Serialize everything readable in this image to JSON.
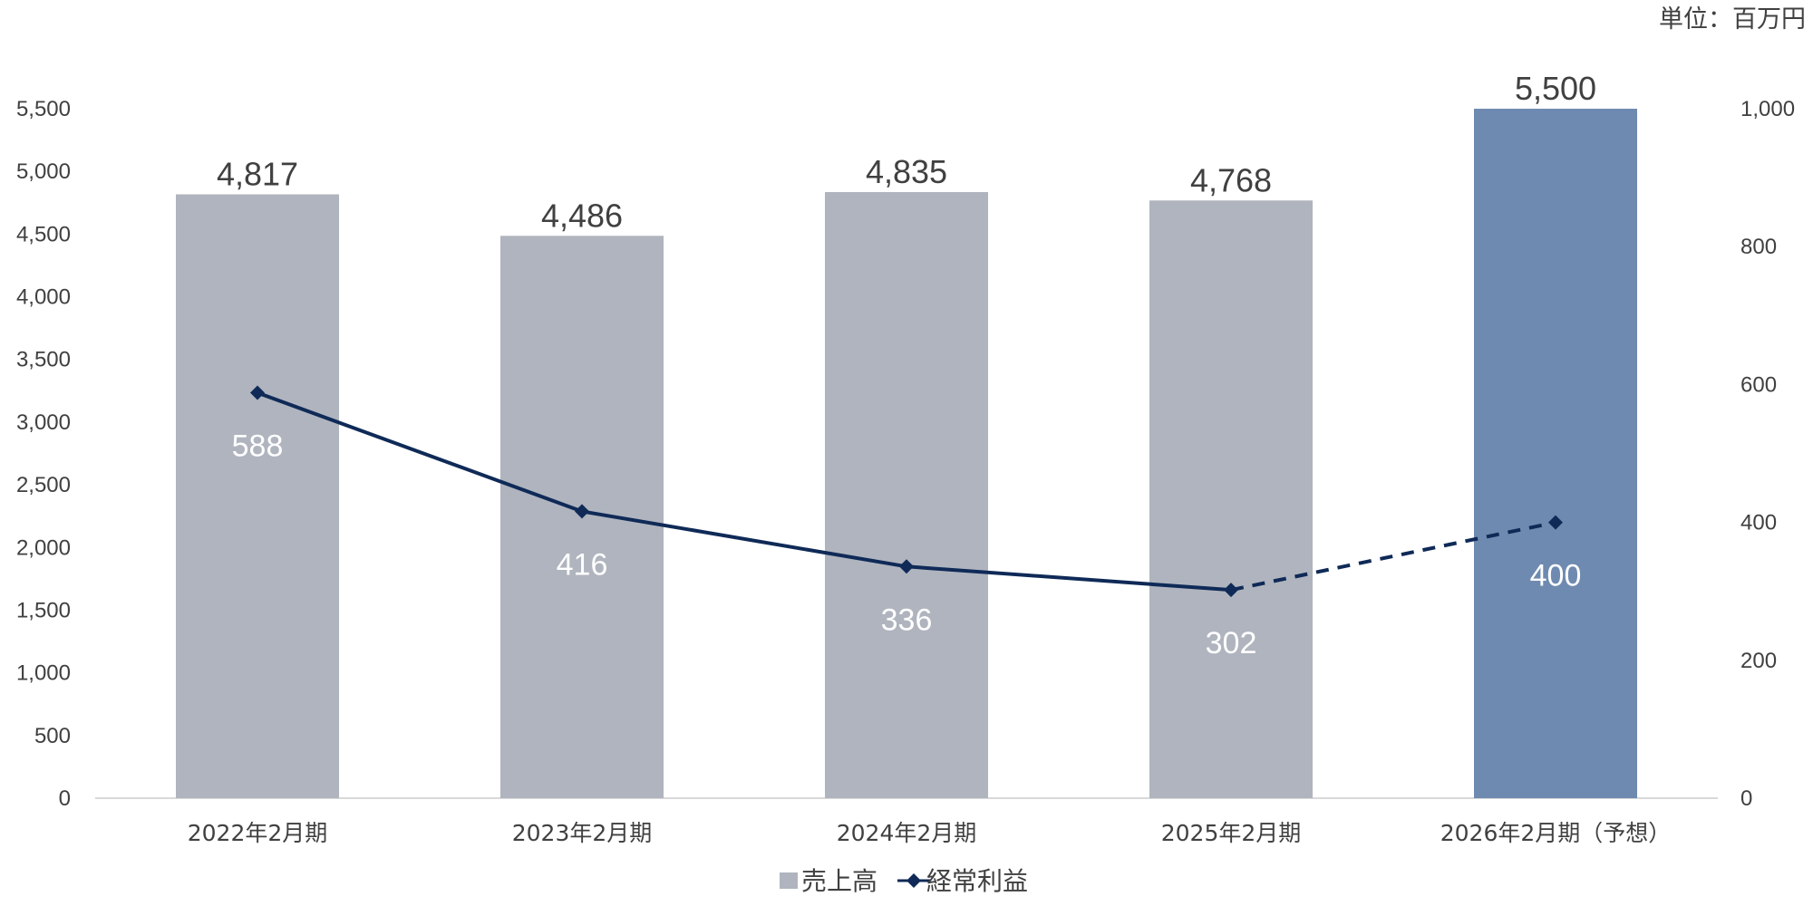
{
  "unit_label": "単位：百万円",
  "chart_data": {
    "type": "bar",
    "categories": [
      "2022年2月期",
      "2023年2月期",
      "2024年2月期",
      "2025年2月期",
      "2026年2月期（予想）"
    ],
    "series": [
      {
        "name": "売上高",
        "type": "bar",
        "axis": "left",
        "values": [
          4817,
          4486,
          4835,
          4768,
          5500
        ],
        "labels": [
          "4,817",
          "4,486",
          "4,835",
          "4,768",
          "5,500"
        ],
        "color": "#afb4be",
        "highlight_color": "#6f8ab0",
        "highlight_index": 4
      },
      {
        "name": "経常利益",
        "type": "line",
        "axis": "right",
        "values": [
          588,
          416,
          336,
          302,
          400
        ],
        "labels": [
          "588",
          "416",
          "336",
          "302",
          "400"
        ],
        "color": "#0f2a57",
        "marker": "diamond",
        "dashed_from_index": 3
      }
    ],
    "y_left": {
      "lim": [
        0,
        5500
      ],
      "ticks": [
        0,
        500,
        1000,
        1500,
        2000,
        2500,
        3000,
        3500,
        4000,
        4500,
        5000,
        5500
      ],
      "tick_labels": [
        "0",
        "500",
        "1,000",
        "1,500",
        "2,000",
        "2,500",
        "3,000",
        "3,500",
        "4,000",
        "4,500",
        "5,000",
        "5,500"
      ]
    },
    "y_right": {
      "lim": [
        0,
        1000
      ],
      "ticks": [
        0,
        200,
        400,
        600,
        800,
        1000
      ],
      "tick_labels": [
        "0",
        "200",
        "400",
        "600",
        "800",
        "1,000"
      ]
    },
    "grid": false,
    "legend": "bottom-center"
  }
}
